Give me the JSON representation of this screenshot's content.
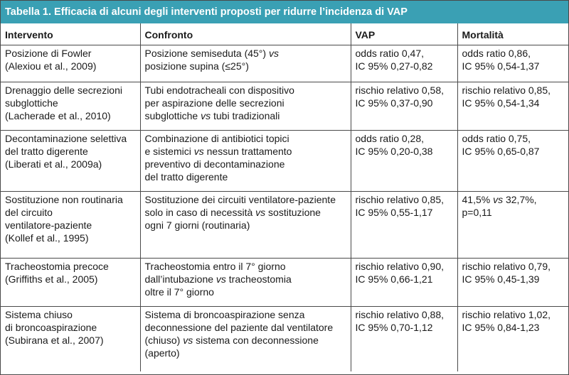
{
  "table": {
    "title_prefix": "Tabella 1.",
    "title_text": "Efficacia di alcuni degli interventi proposti per ridurre l’incidenza di VAP",
    "headers": [
      "Intervento",
      "Confronto",
      "VAP",
      "Mortalità"
    ],
    "rows": [
      {
        "intervento": [
          "Posizione di Fowler",
          "(Alexiou et al., 2009)"
        ],
        "confronto": [
          "Posizione semiseduta (45°) ",
          "vs",
          "posizione supina (≤25°)"
        ],
        "vap": [
          "odds ratio 0,47,",
          "IC 95% 0,27-0,82"
        ],
        "mortalita": [
          "odds ratio 0,86,",
          "IC 95% 0,54-1,37"
        ]
      },
      {
        "intervento": [
          "Drenaggio delle secrezioni",
          "subglottiche",
          "(Lacherade et al., 2010)"
        ],
        "confronto": [
          "Tubi endotracheali con dispositivo",
          "per aspirazione delle secrezioni",
          "subglottiche ",
          "vs",
          " tubi tradizionali"
        ],
        "vap": [
          "rischio relativo 0,58,",
          "IC 95% 0,37-0,90"
        ],
        "mortalita": [
          "rischio relativo 0,85,",
          "IC 95% 0,54-1,34"
        ]
      },
      {
        "intervento": [
          "Decontaminazione selettiva",
          "del tratto digerente",
          "(Liberati et al., 2009a)"
        ],
        "confronto": [
          "Combinazione di antibiotici topici",
          "e sistemici ",
          "vs",
          " nessun trattamento",
          "preventivo di decontaminazione",
          "del tratto digerente"
        ],
        "vap": [
          "odds ratio 0,28,",
          "IC 95% 0,20-0,38"
        ],
        "mortalita": [
          "odds ratio 0,75,",
          "IC 95% 0,65-0,87"
        ]
      },
      {
        "intervento": [
          "Sostituzione non routinaria",
          "del circuito",
          "ventilatore-paziente",
          "(Kollef et al., 1995)"
        ],
        "confronto": [
          "Sostituzione dei circuiti ventilatore-paziente",
          "solo in caso di necessità ",
          "vs",
          " sostituzione",
          "ogni 7 giorni (routinaria)"
        ],
        "vap": [
          "rischio relativo 0,85,",
          "IC 95% 0,55-1,17"
        ],
        "mortalita": [
          "41,5% ",
          "vs",
          " 32,7%,",
          "p=0,11"
        ]
      },
      {
        "intervento": [
          "Tracheostomia precoce",
          "(Griffiths et al., 2005)"
        ],
        "confronto": [
          "Tracheostomia entro il 7° giorno",
          "dall’intubazione ",
          "vs",
          " tracheostomia",
          "oltre il 7° giorno"
        ],
        "vap": [
          "rischio relativo 0,90,",
          "IC 95% 0,66-1,21"
        ],
        "mortalita": [
          "rischio relativo 0,79,",
          "IC 95% 0,45-1,39"
        ]
      },
      {
        "intervento": [
          "Sistema chiuso",
          "di broncoaspirazione",
          "(Subirana et al., 2007)"
        ],
        "confronto": [
          "Sistema di broncoaspirazione senza",
          "deconnessione del paziente dal ventilatore",
          "(chiuso) ",
          "vs",
          " sistema con deconnessione",
          "(aperto)"
        ],
        "vap": [
          "rischio relativo 0,88,",
          "IC 95% 0,70-1,12"
        ],
        "mortalita": [
          "rischio relativo 1,02,",
          "IC 95% 0,84-1,23"
        ]
      }
    ]
  }
}
